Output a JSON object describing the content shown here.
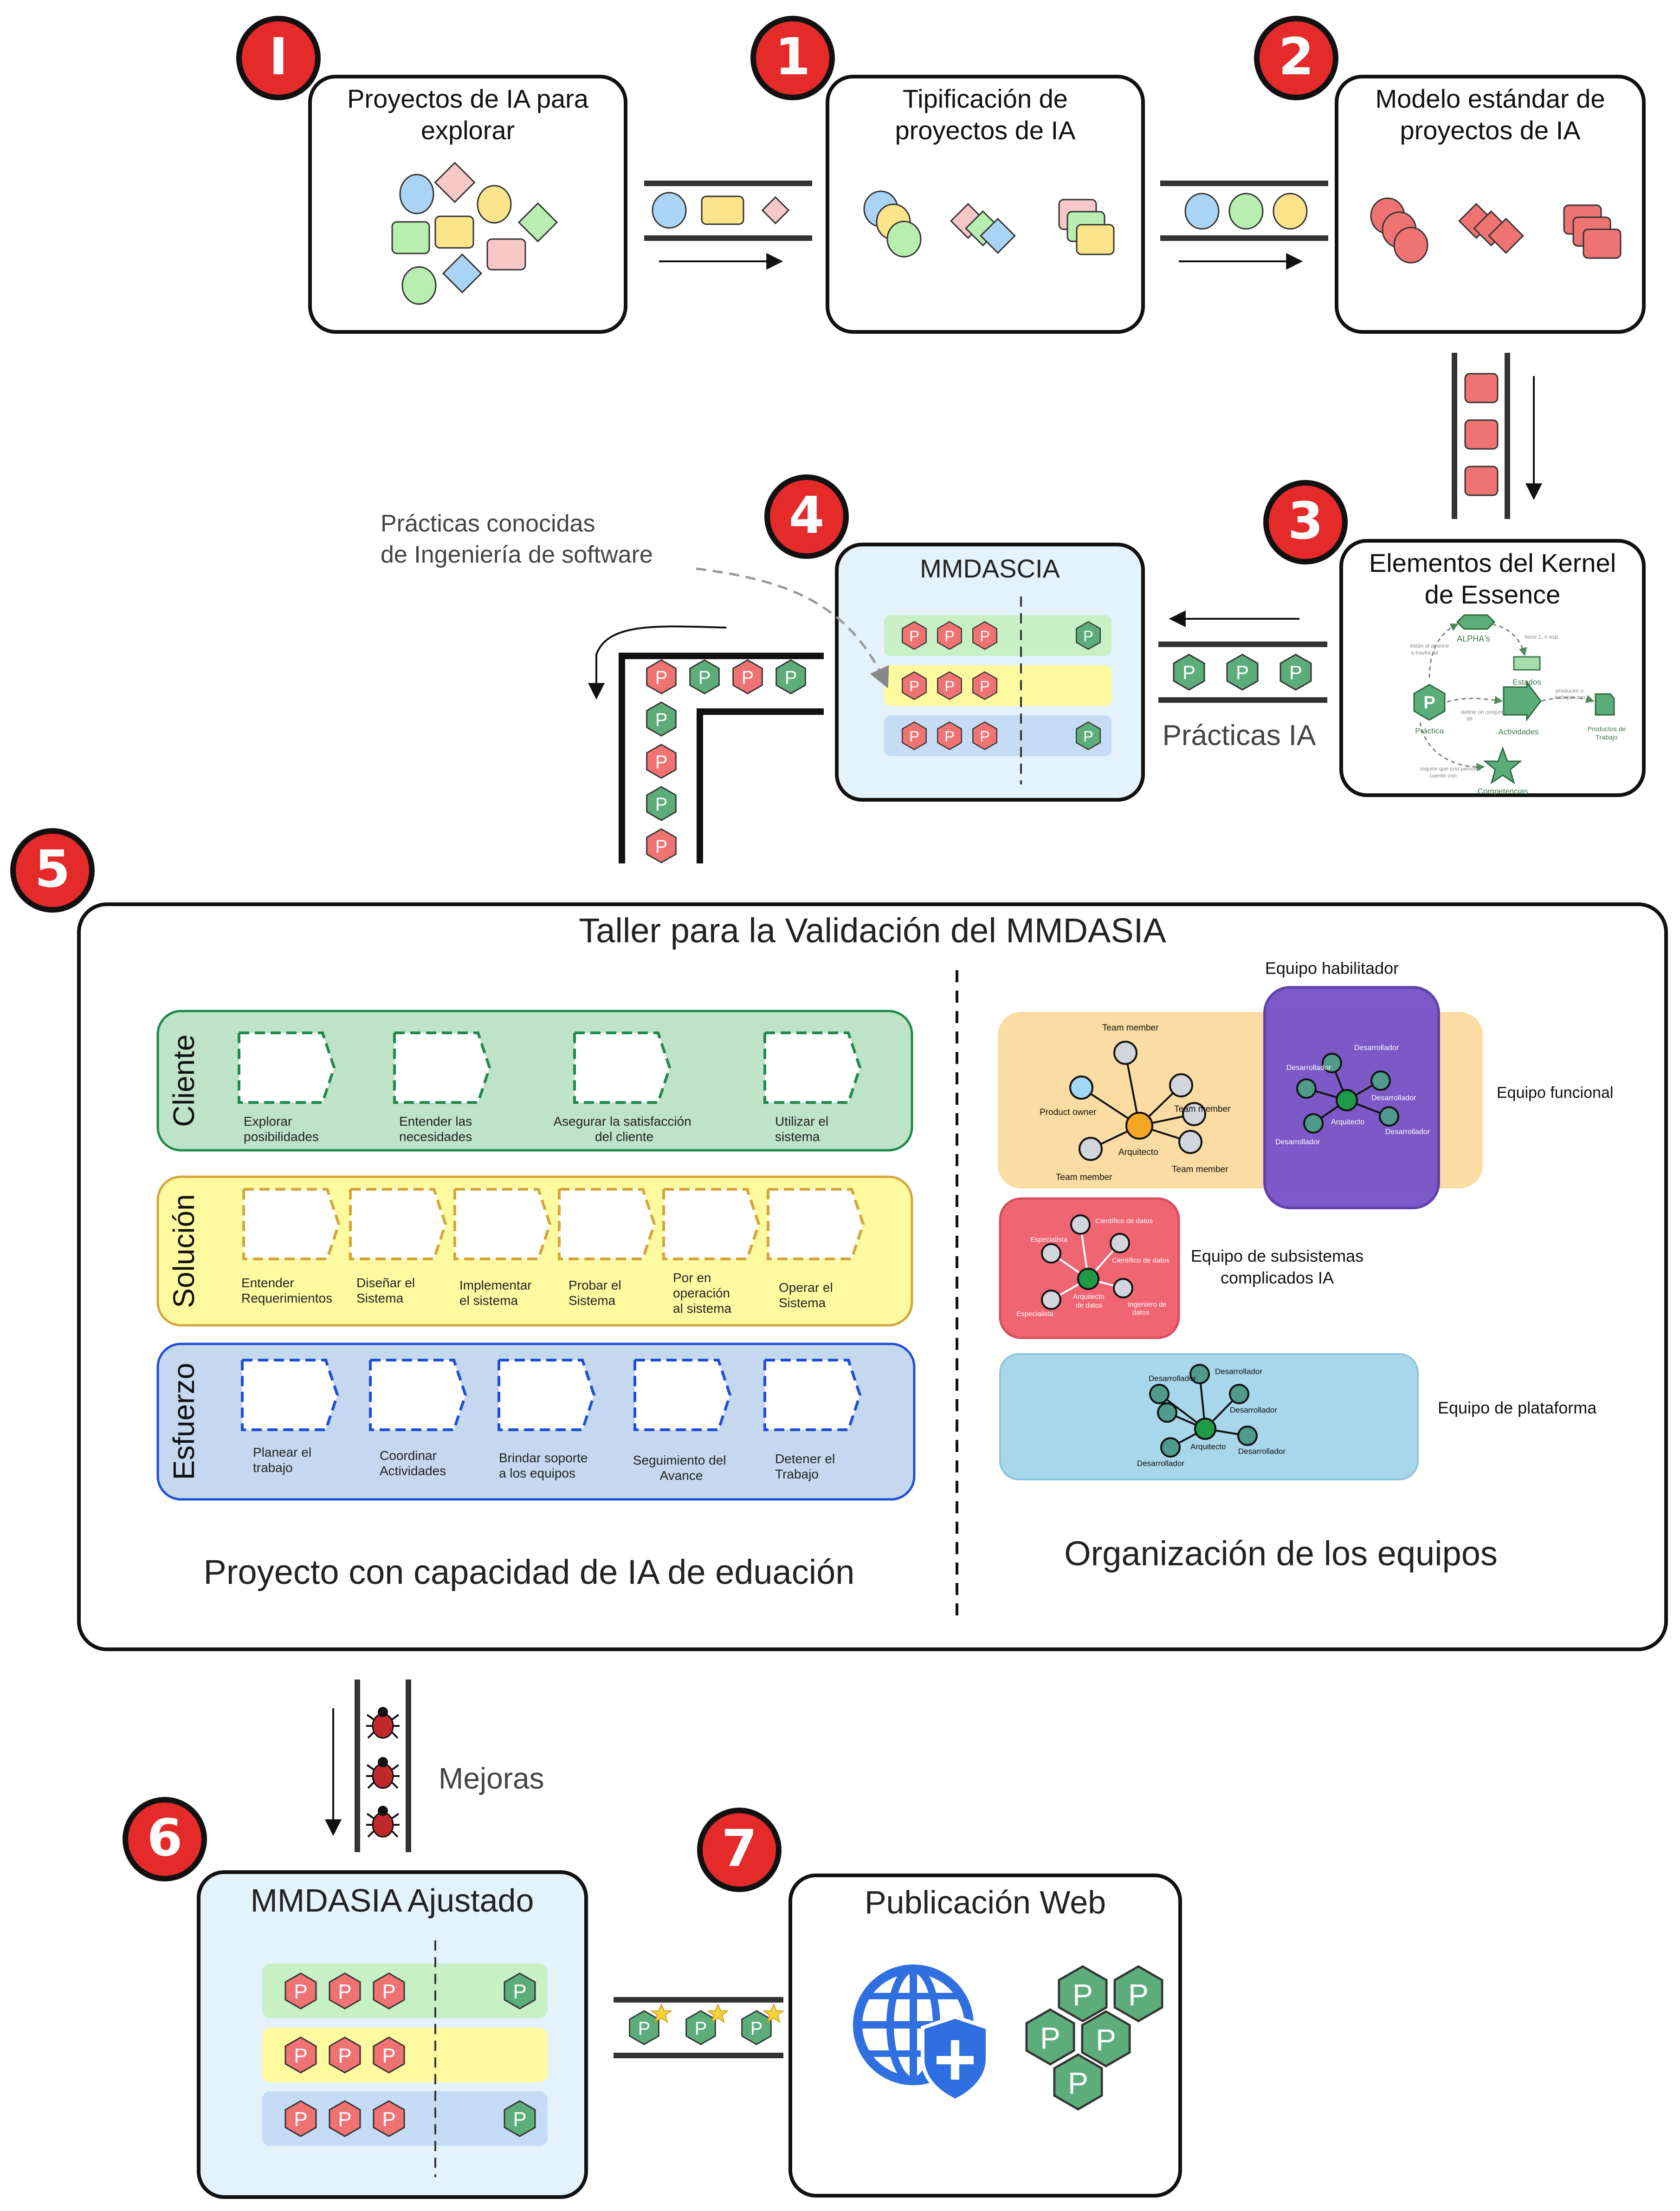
{
  "colors": {
    "badge_red": "#e52a2a",
    "panel_blue": "#e4f2fb",
    "row_green": "#c7f0c7",
    "row_yellow": "#fdfaa0",
    "row_blue": "#c5dbf6",
    "practice_red": "#f07373",
    "practice_green": "#5cad7a"
  },
  "steps": {
    "s0": {
      "badge": "I",
      "title_l1": "Proyectos de IA para",
      "title_l2": "explorar"
    },
    "s1": {
      "badge": "1",
      "title_l1": "Tipificación de",
      "title_l2": "proyectos de IA"
    },
    "s2": {
      "badge": "2",
      "title_l1": "Modelo estándar de",
      "title_l2": "proyectos de IA"
    },
    "s3": {
      "badge": "3",
      "title_l1": "Elementos del Kernel",
      "title_l2": "de Essence"
    },
    "s4": {
      "badge": "4",
      "title": "MMDASCIA"
    },
    "s5": {
      "badge": "5"
    },
    "s6": {
      "badge": "6",
      "title": "MMDASIA Ajustado"
    },
    "s7": {
      "badge": "7",
      "title": "Publicación Web"
    }
  },
  "practice_letter": "P",
  "kernel_diagram": {
    "alphas": "ALPHA's",
    "estados": "Estados",
    "actividades": "Actividades",
    "practica": "Práctica",
    "productos_l1": "Productos de",
    "productos_l2": "Trabajo",
    "competencias": "Competencias",
    "note_1_l1": "están al avance",
    "note_1_l2": "a través de",
    "note_2": "tiene 1..n esp.",
    "note_3_l1": "define un conjunto",
    "note_3_l2": "de",
    "note_4_l1": "producen o",
    "note_4_l2": "trabajan con",
    "note_5_l1": "require que una persona",
    "note_5_l2": "cuente con"
  },
  "labels": {
    "practicas_ia": "Prácticas IA",
    "known_practices_l1": "Prácticas conocidas",
    "known_practices_l2": "de Ingeniería de software",
    "mejoras": "Mejoras"
  },
  "workshop": {
    "title": "Taller para la Validación del MMDASIA",
    "left_caption": "Proyecto con capacidad de IA de eduación",
    "right_caption": "Organización de los equipos",
    "lanes": [
      {
        "name": "Cliente",
        "steps": [
          {
            "l1": "Explorar",
            "l2": "posibilidades",
            "l3": ""
          },
          {
            "l1": "Entender las",
            "l2": "necesidades",
            "l3": ""
          },
          {
            "l1": "Asegurar la satisfacción",
            "l2": "del cliente",
            "l3": ""
          },
          {
            "l1": "Utilizar el",
            "l2": "sistema",
            "l3": ""
          }
        ]
      },
      {
        "name": "Solución",
        "steps": [
          {
            "l1": "Entender",
            "l2": "Requerimientos",
            "l3": ""
          },
          {
            "l1": "Diseñar el",
            "l2": "Sistema",
            "l3": ""
          },
          {
            "l1": "Implementar",
            "l2": "el sistema",
            "l3": ""
          },
          {
            "l1": "Probar el",
            "l2": "Sistema",
            "l3": ""
          },
          {
            "l1": "Por en",
            "l2": "operación",
            "l3": "al sistema"
          },
          {
            "l1": "Operar el",
            "l2": "Sistema",
            "l3": ""
          }
        ]
      },
      {
        "name": "Esfuerzo",
        "steps": [
          {
            "l1": "Planear el",
            "l2": "trabajo",
            "l3": ""
          },
          {
            "l1": "Coordinar",
            "l2": "Actividades",
            "l3": ""
          },
          {
            "l1": "Brindar soporte",
            "l2": "a los equipos",
            "l3": ""
          },
          {
            "l1": "Seguimiento del",
            "l2": "Avance",
            "l3": ""
          },
          {
            "l1": "Detener el",
            "l2": "Trabajo",
            "l3": ""
          }
        ]
      }
    ],
    "teams": {
      "habilitador": "Equipo habilitador",
      "funcional": "Equipo funcional",
      "subsistemas_l1": "Equipo de subsistemas",
      "subsistemas_l2": "complicados IA",
      "plataforma": "Equipo de plataforma",
      "team_member": "Team member",
      "product_owner": "Product owner",
      "arquitecto": "Arquitecto",
      "desarrollador": "Desarrollador",
      "cientifico": "Científico de datos",
      "especialista": "Especialista",
      "arquitecto_datos_l1": "Arquitecto",
      "arquitecto_datos_l2": "de datos",
      "ingeniero_l1": "Ingeniero de",
      "ingeniero_l2": "datos"
    }
  }
}
